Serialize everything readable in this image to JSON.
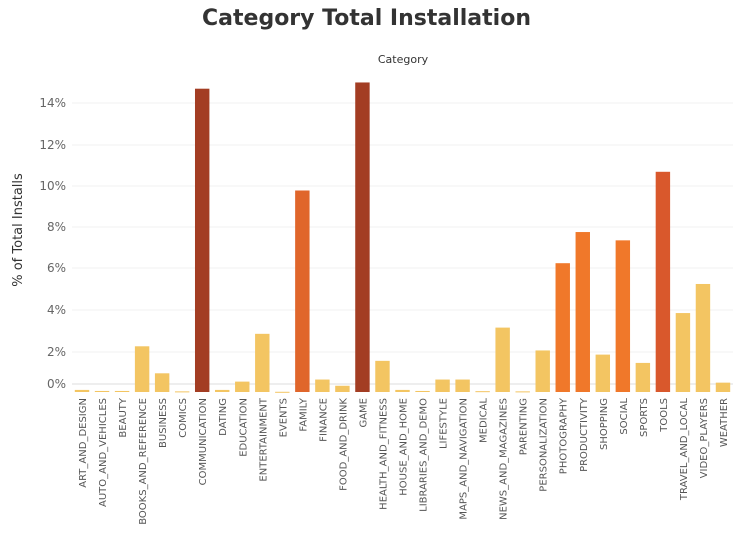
{
  "chart_data": {
    "type": "bar",
    "title": "Category Total Installation",
    "column_header": "Category",
    "ylabel": "% of Total Installs",
    "ylim": [
      0,
      15.5
    ],
    "yticks": [
      "0%",
      "2%",
      "4%",
      "6%",
      "8%",
      "10%",
      "12%",
      "14%"
    ],
    "grid": true,
    "categories": [
      "ART_AND_DESIGN",
      "AUTO_AND_VEHICLES",
      "BEAUTY",
      "BOOKS_AND_REFERENCE",
      "BUSINESS",
      "COMICS",
      "COMMUNICATION",
      "DATING",
      "EDUCATION",
      "ENTERTAINMENT",
      "EVENTS",
      "FAMILY",
      "FINANCE",
      "FOOD_AND_DRINK",
      "GAME",
      "HEALTH_AND_FITNESS",
      "HOUSE_AND_HOME",
      "LIBRARIES_AND_DEMO",
      "LIFESTYLE",
      "MAPS_AND_NAVIGATION",
      "MEDICAL",
      "NEWS_AND_MAGAZINES",
      "PARENTING",
      "PERSONALIZATION",
      "PHOTOGRAPHY",
      "PRODUCTIVITY",
      "SHOPPING",
      "SOCIAL",
      "SPORTS",
      "TOOLS",
      "TRAVEL_AND_LOCAL",
      "VIDEO_PLAYERS",
      "WEATHER"
    ],
    "values": [
      0.1,
      0.05,
      0.05,
      2.2,
      0.9,
      0.03,
      14.6,
      0.1,
      0.5,
      2.8,
      0.01,
      9.7,
      0.6,
      0.3,
      14.9,
      1.5,
      0.1,
      0.05,
      0.6,
      0.6,
      0.04,
      3.1,
      0.03,
      2.0,
      6.2,
      7.7,
      1.8,
      7.3,
      1.4,
      10.6,
      3.8,
      5.2,
      0.45
    ],
    "colors": [
      "#f3c562",
      "#f3c562",
      "#f3c562",
      "#f3c562",
      "#f3c562",
      "#f3c562",
      "#a33d23",
      "#f3c562",
      "#f3c562",
      "#f3c562",
      "#f3c562",
      "#e0662b",
      "#f3c562",
      "#f3c562",
      "#a33d23",
      "#f3c562",
      "#f3c562",
      "#f3c562",
      "#f3c562",
      "#f3c562",
      "#f3c562",
      "#f3c562",
      "#f3c562",
      "#f3c562",
      "#f0782a",
      "#f0782a",
      "#f3c562",
      "#f0782a",
      "#f3c562",
      "#d9582c",
      "#f3c562",
      "#f3c562",
      "#f3c562"
    ]
  }
}
